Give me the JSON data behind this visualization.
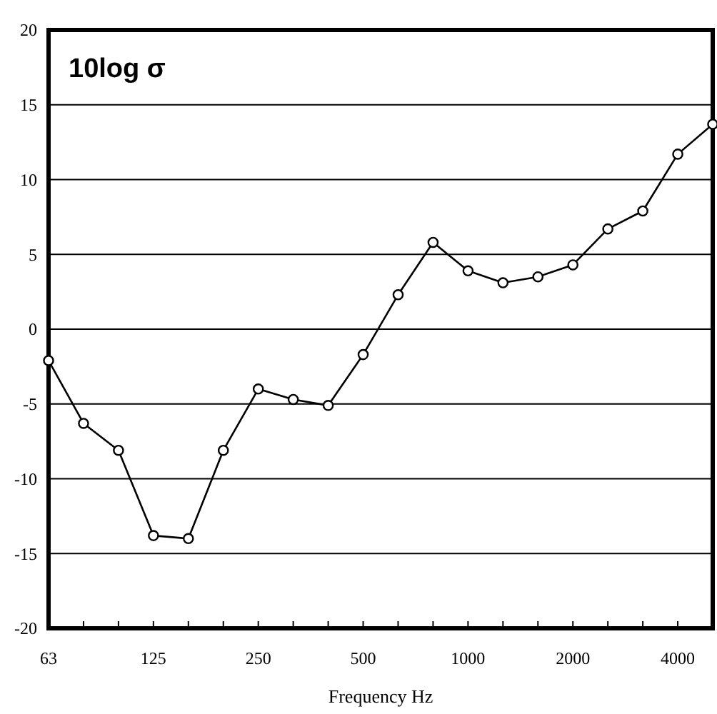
{
  "chart_data": {
    "type": "line",
    "title": "10log σ",
    "xlabel": "Frequency Hz",
    "categories": [
      "63",
      null,
      null,
      "125",
      null,
      null,
      "250",
      null,
      null,
      "500",
      null,
      null,
      "1000",
      null,
      null,
      "2000",
      null,
      null,
      "4000",
      null
    ],
    "series": [
      {
        "color": "#000000",
        "values": [
          -2.1,
          -6.3,
          -8.1,
          -13.8,
          -14.0,
          -8.1,
          -4.0,
          -4.7,
          -5.1,
          -1.7,
          2.3,
          5.8,
          3.9,
          3.1,
          3.5,
          4.3,
          6.7,
          7.9,
          11.7,
          13.7
        ]
      }
    ],
    "ylim": [
      -20,
      20
    ],
    "yticks": [
      -20,
      -15,
      -10,
      -5,
      0,
      5,
      10,
      15,
      20
    ],
    "grid": "y",
    "marker": "circle",
    "line_style": "solid"
  }
}
